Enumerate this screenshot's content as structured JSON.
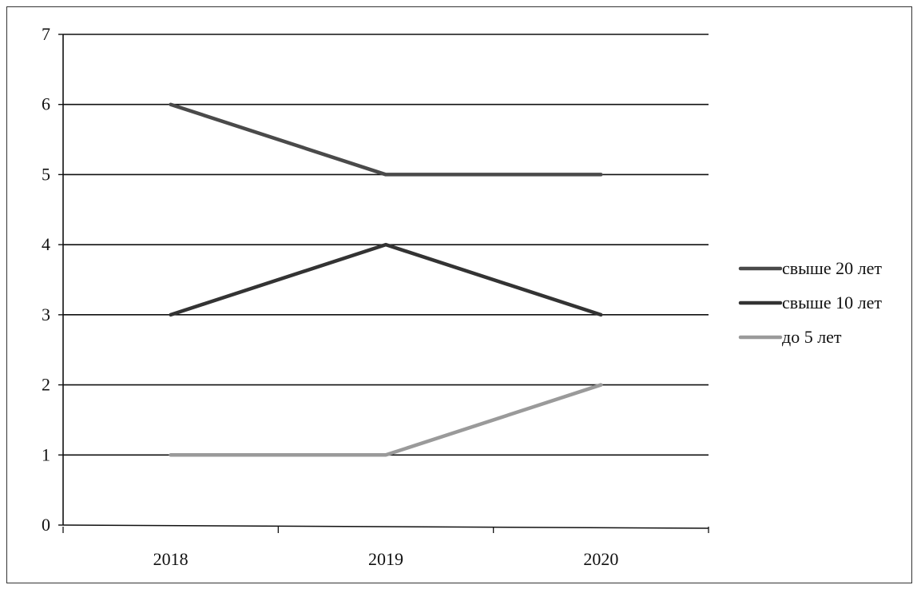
{
  "chart_data": {
    "type": "line",
    "categories": [
      "2018",
      "2019",
      "2020"
    ],
    "ylim": [
      0,
      7
    ],
    "yticks": [
      0,
      1,
      2,
      3,
      4,
      5,
      6,
      7
    ],
    "grid": true,
    "legend_position": "right",
    "series": [
      {
        "name": "свыше 20 лет",
        "values": [
          6,
          5,
          5
        ],
        "color": "#4a4a4a"
      },
      {
        "name": "свыше 10 лет",
        "values": [
          3,
          4,
          3
        ],
        "color": "#333333"
      },
      {
        "name": "до 5 лет",
        "values": [
          1,
          1,
          2
        ],
        "color": "#9a9a9a"
      }
    ]
  }
}
